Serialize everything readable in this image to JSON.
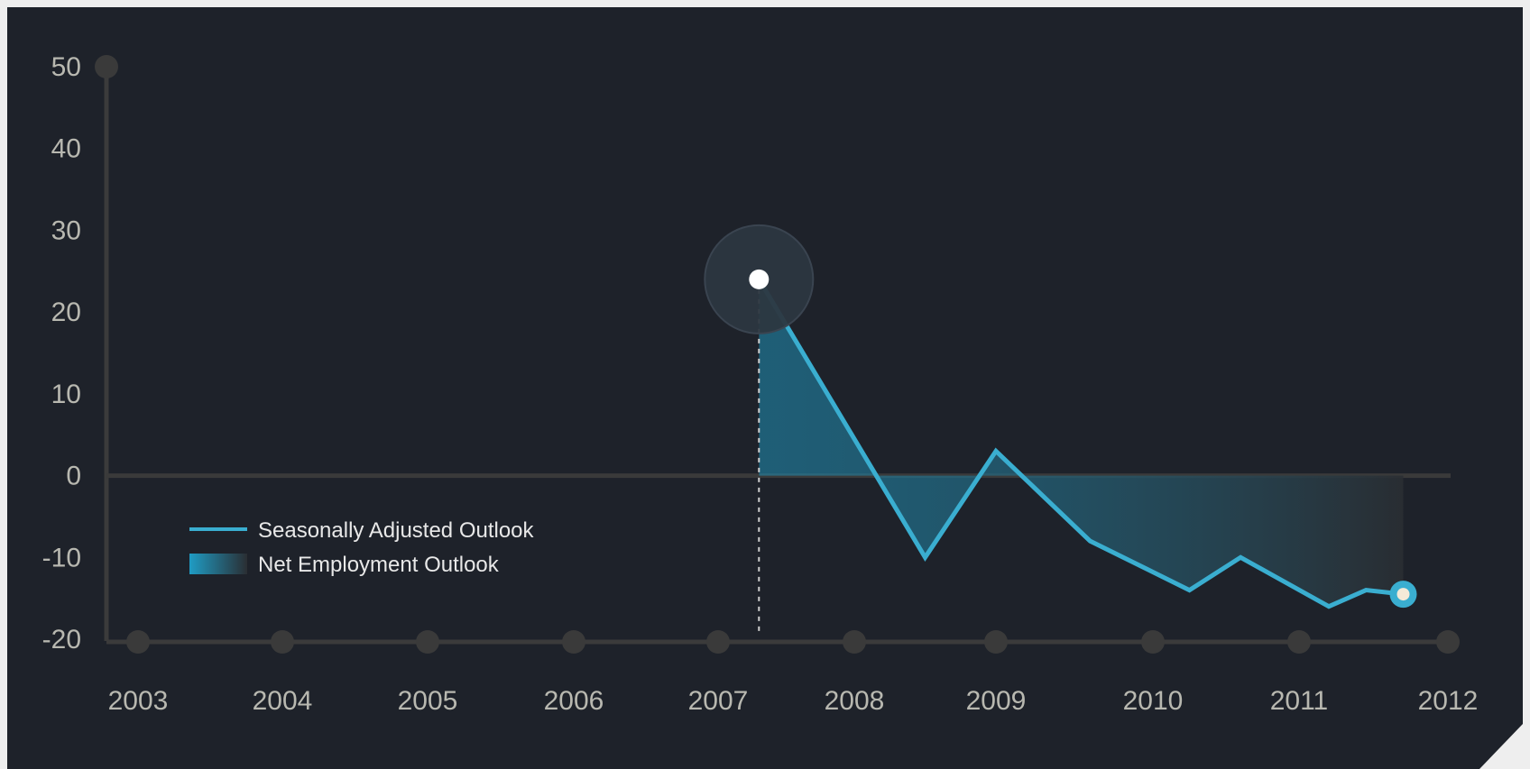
{
  "chart_data": {
    "type": "line",
    "title": "",
    "xlabel": "",
    "ylabel": "",
    "x_ticks": [
      "2003",
      "2004",
      "2005",
      "2006",
      "2007",
      "2008",
      "2009",
      "2010",
      "2011",
      "2012"
    ],
    "y_ticks": [
      50,
      40,
      30,
      20,
      10,
      0,
      -10,
      -20
    ],
    "xlim": [
      2003,
      2012
    ],
    "ylim": [
      -20,
      50
    ],
    "series": [
      {
        "name": "Seasonally Adjusted Outlook",
        "x": [
          2007.3,
          2008.5,
          2009.0,
          2009.6,
          2010.25,
          2010.6,
          2011.2,
          2011.45,
          2011.7
        ],
        "y": [
          24,
          -10,
          3,
          -8,
          -14,
          -10,
          -16,
          -14,
          -14.5
        ],
        "color": "#3aaed0"
      }
    ],
    "area_series": {
      "name": "Net Employment Outlook",
      "gradient": [
        "#1f8fb5",
        "#2a2e33"
      ]
    },
    "highlight_point": {
      "x": 2007.3,
      "y": 24
    },
    "end_point": {
      "x": 2011.7,
      "y": -14.5
    },
    "legend": {
      "position": "bottom-left",
      "items": [
        "Seasonally Adjusted Outlook",
        "Net Employment Outlook"
      ]
    },
    "grid": false
  },
  "colors": {
    "background": "#1e222a",
    "axis": "#3b3b3b",
    "line": "#3aaed0",
    "tick_text": "#b8b8b0"
  }
}
